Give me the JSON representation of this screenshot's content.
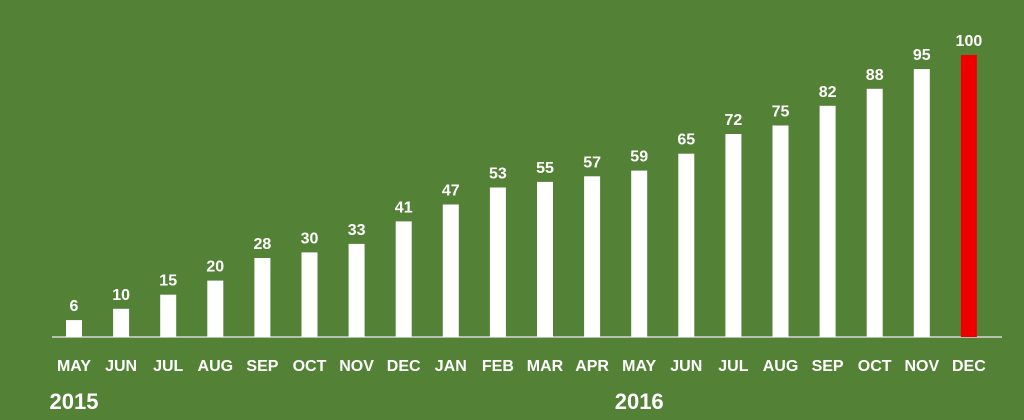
{
  "chart_data": {
    "type": "bar",
    "categories": [
      "MAY",
      "JUN",
      "JUL",
      "AUG",
      "SEP",
      "OCT",
      "NOV",
      "DEC",
      "JAN",
      "FEB",
      "MAR",
      "APR",
      "MAY",
      "JUN",
      "JUL",
      "AUG",
      "SEP",
      "OCT",
      "NOV",
      "DEC"
    ],
    "values": [
      6,
      10,
      15,
      20,
      28,
      30,
      33,
      41,
      47,
      53,
      55,
      57,
      59,
      65,
      72,
      75,
      82,
      88,
      95,
      100
    ],
    "year_labels": [
      {
        "text": "2015",
        "category_index": 0
      },
      {
        "text": "2016",
        "category_index": 12
      }
    ],
    "title": "",
    "xlabel": "",
    "ylabel": "",
    "ylim": [
      0,
      100
    ],
    "grid": false,
    "data_labels": true,
    "bar_color": "#ffffff",
    "highlight_index": 19,
    "highlight_color": "#ee0000",
    "background_color": "#538135"
  }
}
